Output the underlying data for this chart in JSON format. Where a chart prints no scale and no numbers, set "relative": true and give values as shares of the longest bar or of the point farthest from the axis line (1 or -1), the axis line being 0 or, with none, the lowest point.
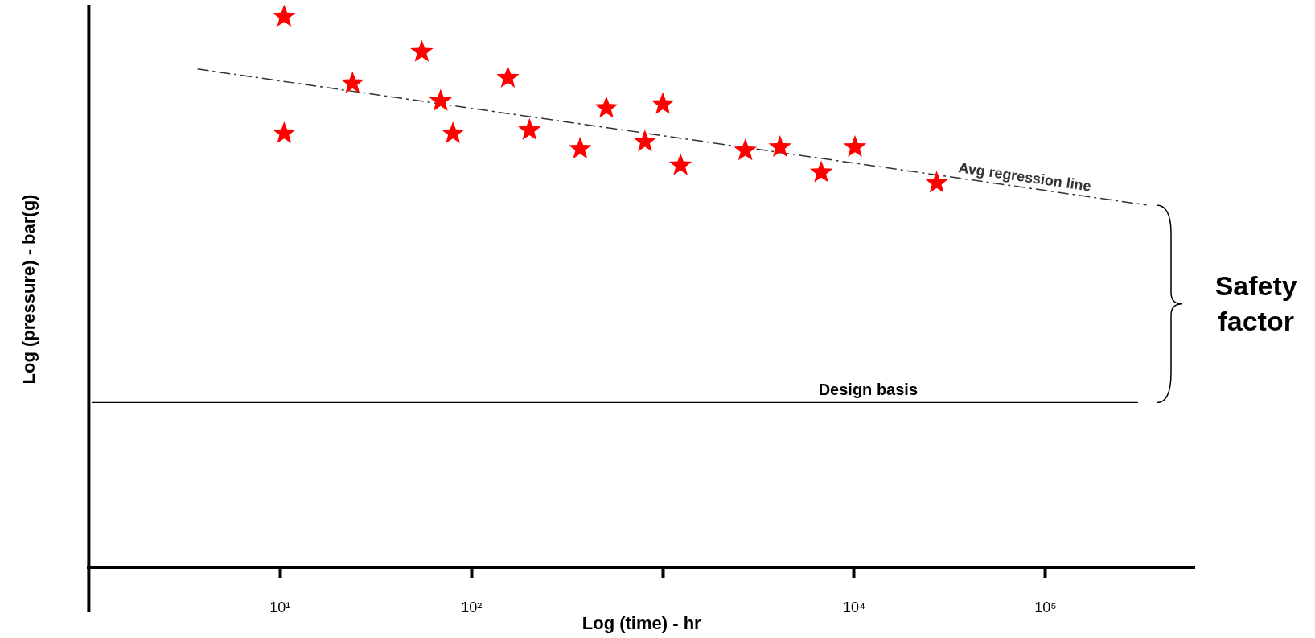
{
  "chart_data": {
    "type": "scatter",
    "xlabel": "Log (time) - hr",
    "ylabel": "Log (pressure) - bar(g)",
    "relative": true,
    "log": "x",
    "xlim": [
      1,
      600000
    ],
    "xticks": [
      {
        "value": 10,
        "label": "10¹"
      },
      {
        "value": 100,
        "label": "10²"
      },
      {
        "value": 1000,
        "label": null
      },
      {
        "value": 10000,
        "label": "10⁴"
      },
      {
        "value": 100000,
        "label": "10⁵"
      }
    ],
    "series": [
      {
        "color": "#ff0000",
        "marker": "star",
        "x": [
          10.5,
          10.5,
          23.9,
          55,
          69,
          80,
          155,
          201,
          370,
          507,
          807,
          1000,
          1238,
          2700,
          4100,
          6730,
          10100,
          27000
        ],
        "values": [
          1,
          0.788,
          0.879,
          0.936,
          0.847,
          0.788,
          0.889,
          0.794,
          0.76,
          0.834,
          0.773,
          0.841,
          0.73,
          0.757,
          0.763,
          0.717,
          0.763,
          0.698
        ]
      },
      {
        "type": "line",
        "name": "Avg regression line",
        "color": "#333333",
        "line_style": "dashed",
        "marker": "none",
        "x": [
          3.7,
          338000
        ],
        "values": [
          0.905,
          0.658
        ]
      }
    ],
    "ref_lines": [
      {
        "axis": "y",
        "value": 0.299,
        "label": "Design basis",
        "color": "#000000"
      }
    ],
    "annotations": [
      "Safety factor"
    ],
    "grid": false,
    "legend": false,
    "tick_labels": "x"
  }
}
